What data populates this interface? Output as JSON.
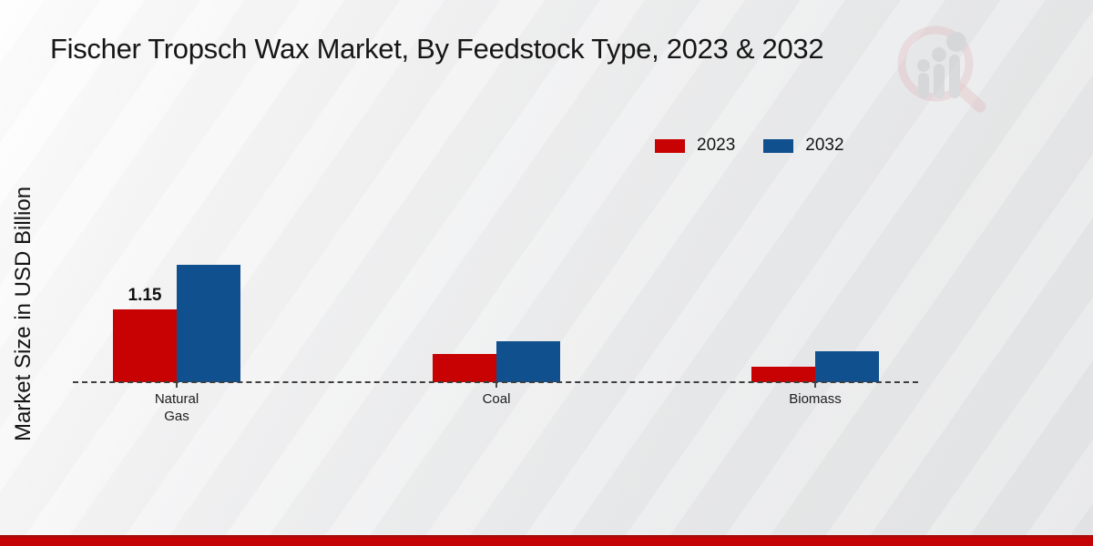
{
  "chart_data": {
    "type": "bar",
    "title": "Fischer Tropsch Wax Market, By Feedstock Type, 2023 & 2032",
    "ylabel": "Market Size in USD Billion",
    "xlabel": "",
    "categories": [
      "Natural Gas",
      "Coal",
      "Biomass"
    ],
    "series": [
      {
        "name": "2023",
        "color": "#c80202",
        "values": [
          1.15,
          0.45,
          0.25
        ]
      },
      {
        "name": "2032",
        "color": "#11508e",
        "values": [
          1.86,
          0.65,
          0.49
        ]
      }
    ],
    "data_labels": [
      {
        "category": "Natural Gas",
        "series": "2023",
        "text": "1.15"
      }
    ],
    "ylim": [
      0,
      2
    ],
    "grid": false,
    "legend_position": "top-right",
    "baseline_style": "dashed"
  },
  "branding": {
    "watermark_icon": "magnifier-bar-chart-logo",
    "footer_band_color": "#c40404"
  }
}
